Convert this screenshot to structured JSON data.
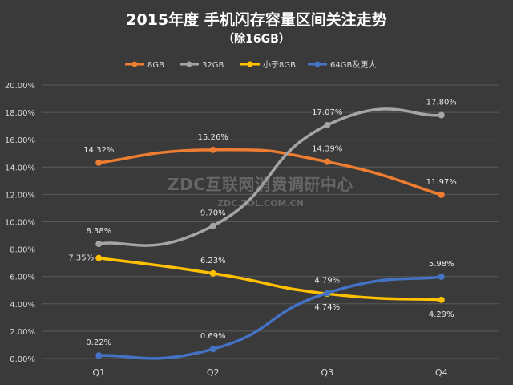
{
  "chart_data": {
    "type": "line",
    "title": "2015年度 手机闪存容量区间关注走势",
    "subtitle": "（除16GB）",
    "categories": [
      "Q1",
      "Q2",
      "Q3",
      "Q4"
    ],
    "ylim": [
      0,
      20
    ],
    "yticks": [
      "0.00%",
      "2.00%",
      "4.00%",
      "6.00%",
      "8.00%",
      "10.00%",
      "12.00%",
      "14.00%",
      "16.00%",
      "18.00%",
      "20.00%"
    ],
    "grid": true,
    "legend_position": "top",
    "series": [
      {
        "name": "8GB",
        "color": "#ed7d31",
        "values": [
          14.32,
          15.26,
          14.39,
          11.97
        ],
        "labels": [
          "14.32%",
          "15.26%",
          "14.39%",
          "11.97%"
        ]
      },
      {
        "name": "32GB",
        "color": "#a5a5a5",
        "values": [
          8.38,
          9.7,
          17.07,
          17.8
        ],
        "labels": [
          "8.38%",
          "9.70%",
          "17.07%",
          "17.80%"
        ]
      },
      {
        "name": "小于8GB",
        "color": "#ffc000",
        "values": [
          7.35,
          6.23,
          4.74,
          4.29
        ],
        "labels": [
          "7.35%",
          "6.23%",
          "4.74%",
          "4.29%"
        ]
      },
      {
        "name": "64GB及更大",
        "color": "#4472c4",
        "values": [
          0.22,
          0.69,
          4.79,
          5.98
        ],
        "labels": [
          "0.22%",
          "0.69%",
          "4.79%",
          "5.98%"
        ]
      }
    ]
  },
  "watermark": {
    "text": "ZDC互联网消费调研中心",
    "url": "ZDC.ZOL.COM.CN"
  }
}
